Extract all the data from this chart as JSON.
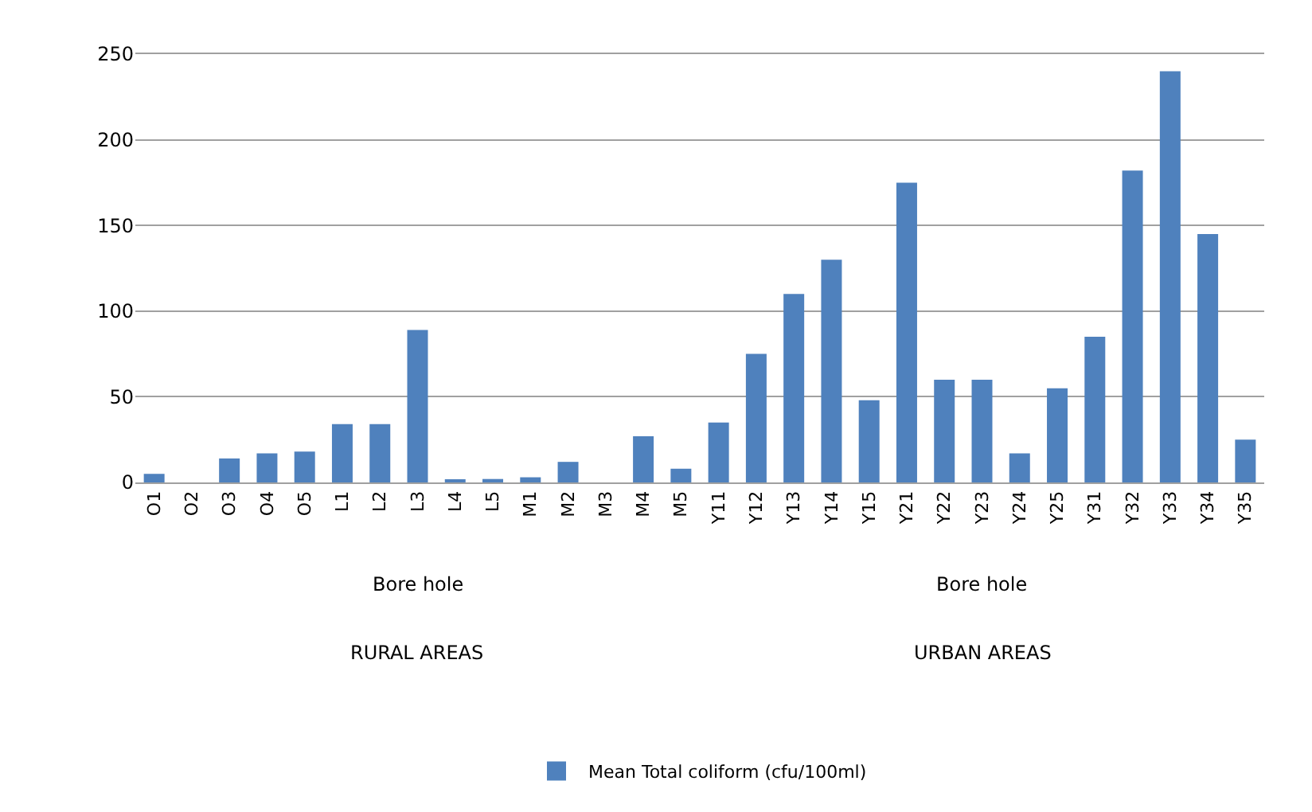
{
  "chart_data": {
    "type": "bar",
    "categories": [
      "O1",
      "O2",
      "O3",
      "O4",
      "O5",
      "L1",
      "L2",
      "L3",
      "L4",
      "L5",
      "M1",
      "M2",
      "M3",
      "M4",
      "M5",
      "Y11",
      "Y12",
      "Y13",
      "Y14",
      "Y15",
      "Y21",
      "Y22",
      "Y23",
      "Y24",
      "Y25",
      "Y31",
      "Y32",
      "Y33",
      "Y34",
      "Y35"
    ],
    "series": [
      {
        "name": "Mean Total coliform (cfu/100ml)",
        "color": "#4f81bd",
        "values": [
          5,
          0,
          14,
          17,
          18,
          34,
          34,
          89,
          1,
          2,
          3,
          12,
          0,
          27,
          8,
          35,
          75,
          110,
          130,
          48,
          175,
          60,
          60,
          17,
          55,
          85,
          182,
          240,
          145,
          25
        ]
      }
    ],
    "ylim": [
      0,
      250
    ],
    "yticks": [
      0,
      50,
      100,
      150,
      200,
      250
    ],
    "grid": "y",
    "legend": "bottom",
    "annotations": [
      "Bore hole",
      "RURAL AREAS",
      "Bore hole",
      "URBAN AREAS"
    ]
  }
}
